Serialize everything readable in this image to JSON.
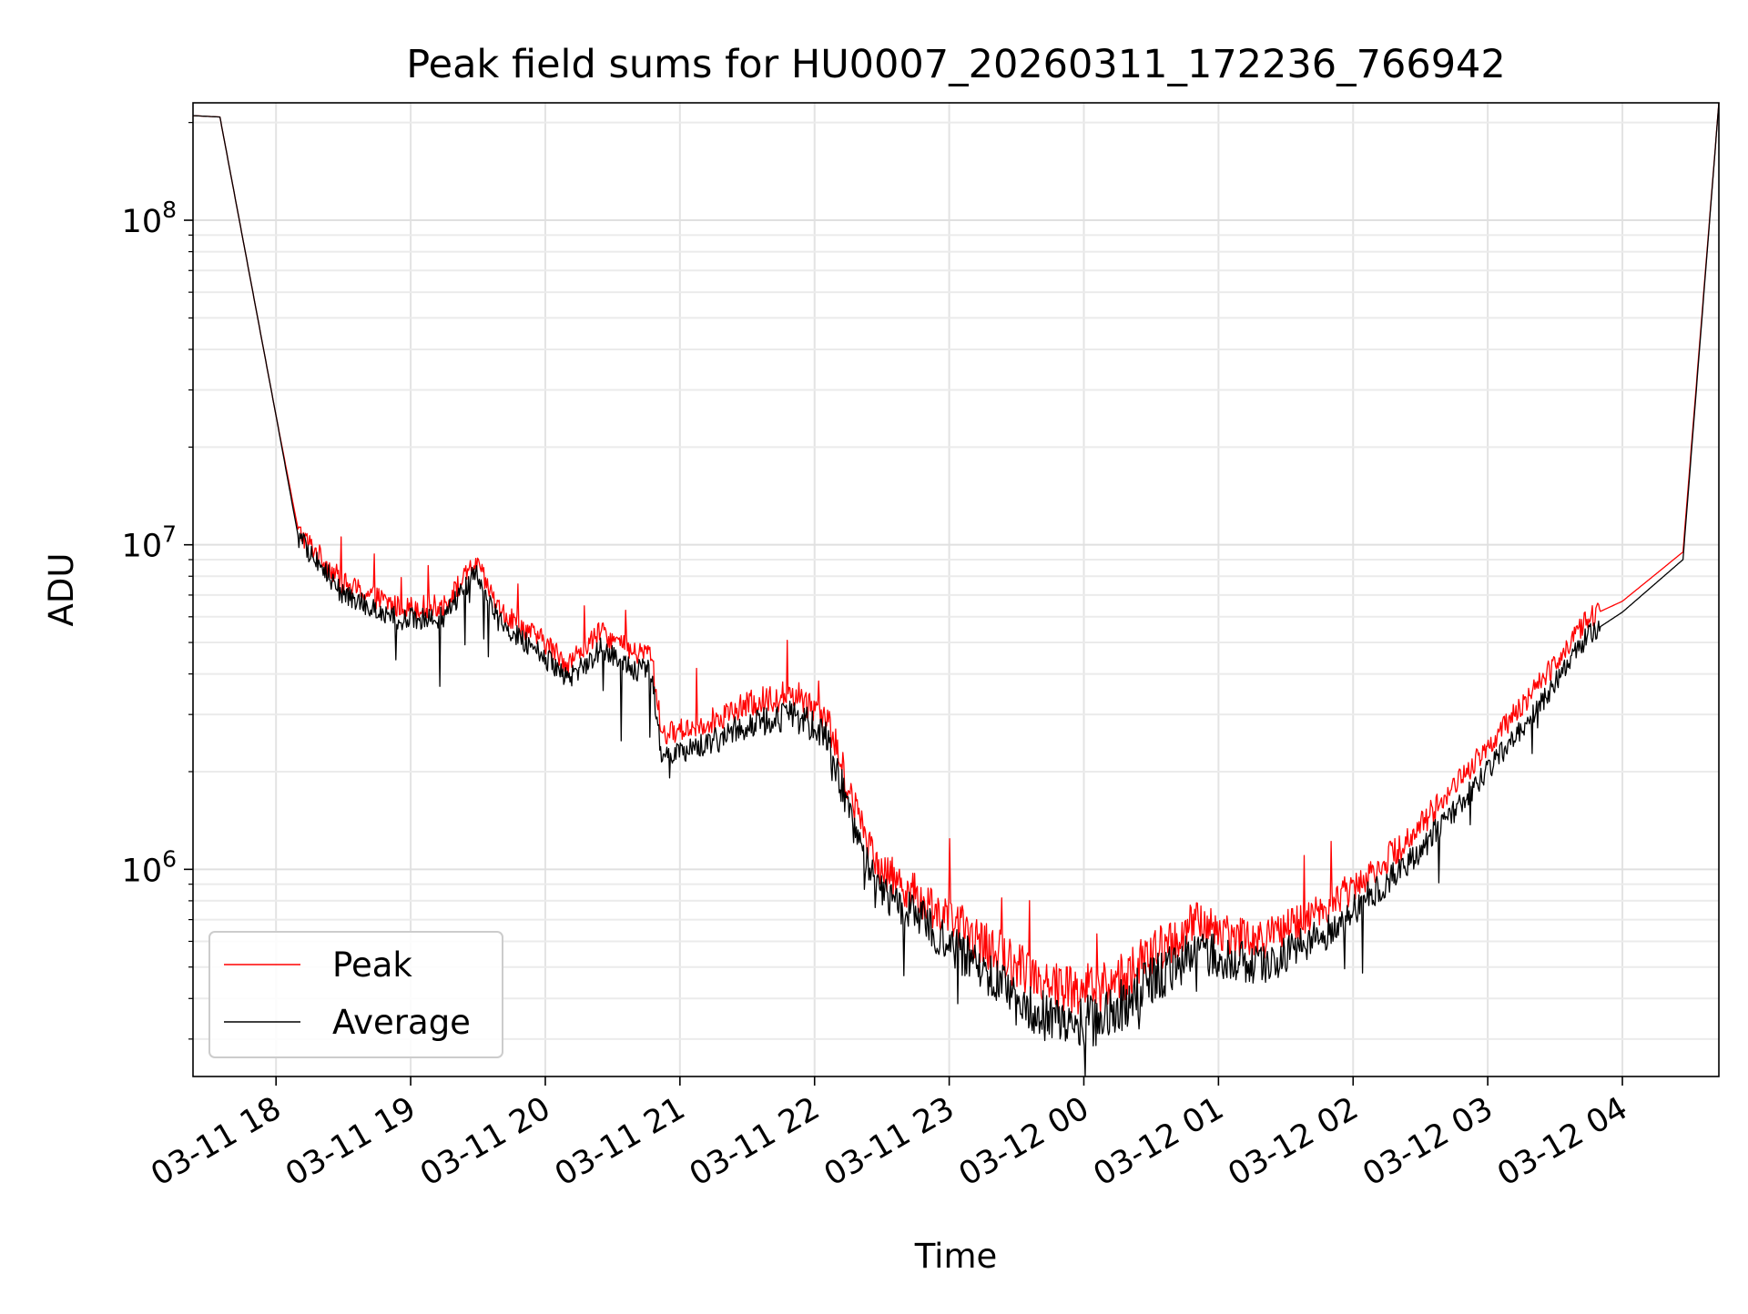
{
  "chart_data": {
    "type": "line",
    "title": "Peak field sums for HU0007_20260311_172236_766942",
    "xlabel": "Time",
    "ylabel": "ADU",
    "yscale": "log",
    "xlim": [
      "2026-03-11 17:23",
      "2026-03-12 04:43"
    ],
    "ylim": [
      230000,
      230000000
    ],
    "grid": true,
    "legend_position": "lower-left",
    "x_tick_labels": [
      "03-11 18",
      "03-11 19",
      "03-11 20",
      "03-11 21",
      "03-11 22",
      "03-11 23",
      "03-12 00",
      "03-12 01",
      "03-12 02",
      "03-12 03",
      "03-12 04"
    ],
    "y_tick_labels": [
      {
        "base": "10",
        "exp": "6",
        "value": 1000000
      },
      {
        "base": "10",
        "exp": "7",
        "value": 10000000
      },
      {
        "base": "10",
        "exp": "8",
        "value": 100000000
      }
    ],
    "x": [
      "2026-03-11 17:23",
      "2026-03-11 17:35",
      "2026-03-11 18:00",
      "2026-03-11 18:10",
      "2026-03-11 18:30",
      "2026-03-11 18:55",
      "2026-03-11 19:15",
      "2026-03-11 19:29",
      "2026-03-11 19:40",
      "2026-03-11 20:00",
      "2026-03-11 20:10",
      "2026-03-11 20:25",
      "2026-03-11 20:40",
      "2026-03-11 20:47",
      "2026-03-11 20:52",
      "2026-03-11 21:10",
      "2026-03-11 21:30",
      "2026-03-11 21:50",
      "2026-03-11 22:05",
      "2026-03-11 22:20",
      "2026-03-11 22:30",
      "2026-03-11 22:50",
      "2026-03-11 23:20",
      "2026-03-11 23:50",
      "2026-03-12 00:10",
      "2026-03-12 00:30",
      "2026-03-12 00:50",
      "2026-03-12 01:20",
      "2026-03-12 01:50",
      "2026-03-12 02:20",
      "2026-03-12 02:45",
      "2026-03-12 03:20",
      "2026-03-12 03:45",
      "2026-03-12 04:00",
      "2026-03-12 04:27",
      "2026-03-12 04:43"
    ],
    "series": [
      {
        "name": "Peak",
        "color": "#ff0000",
        "values": [
          210000000,
          208000000,
          25000000,
          11000000,
          7600000,
          6400000,
          6500000,
          8800000,
          6200000,
          5000000,
          4300000,
          5400000,
          4600000,
          4700000,
          2600000,
          2800000,
          3200000,
          3500000,
          3000000,
          1400000,
          1000000,
          790000,
          560000,
          430000,
          430000,
          540000,
          680000,
          600000,
          780000,
          1150000,
          1800000,
          3500000,
          6000000,
          6700000,
          9500000,
          230000000
        ]
      },
      {
        "name": "Average",
        "color": "#000000",
        "values": [
          210000000,
          208000000,
          25000000,
          10500000,
          7000000,
          5900000,
          6000000,
          8200000,
          5700000,
          4500000,
          3800000,
          4800000,
          4100000,
          4200000,
          2200000,
          2400000,
          2800000,
          3000000,
          2600000,
          1200000,
          850000,
          680000,
          450000,
          330000,
          350000,
          450000,
          560000,
          500000,
          650000,
          980000,
          1500000,
          3000000,
          5300000,
          6200000,
          9000000,
          230000000
        ]
      }
    ]
  }
}
